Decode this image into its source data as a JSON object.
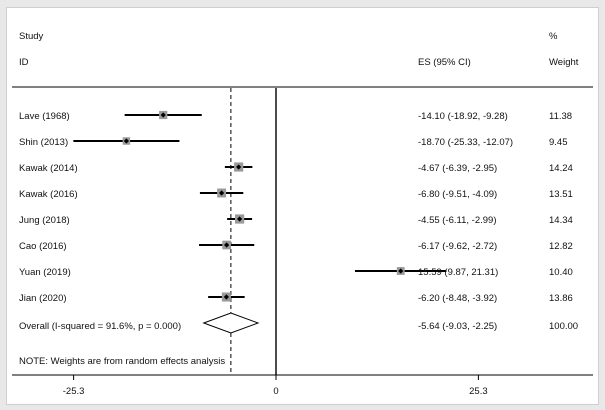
{
  "header": {
    "study_label": "Study",
    "id_label": "ID",
    "es_label": "ES (95% CI)",
    "pct_label": "%",
    "weight_label": "Weight"
  },
  "note": "NOTE: Weights are from random effects analysis",
  "chart_data": {
    "type": "forest",
    "title": "",
    "xlabel": "",
    "ylabel": "",
    "xlim": [
      -33,
      33
    ],
    "null_line": 0,
    "overall_line": -5.64,
    "ticks": [
      {
        "value": -25.3,
        "label": "-25.3"
      },
      {
        "value": 0,
        "label": "0"
      },
      {
        "value": 25.3,
        "label": "25.3"
      }
    ],
    "studies": [
      {
        "label": "Lave (1968)",
        "es": -14.1,
        "lo": -18.92,
        "hi": -9.28,
        "ci_text": "-14.10 (-18.92, -9.28)",
        "weight": 11.38,
        "weight_text": "11.38"
      },
      {
        "label": "Shin (2013)",
        "es": -18.7,
        "lo": -25.33,
        "hi": -12.07,
        "ci_text": "-18.70 (-25.33, -12.07)",
        "weight": 9.45,
        "weight_text": "9.45"
      },
      {
        "label": "Kawak (2014)",
        "es": -4.67,
        "lo": -6.39,
        "hi": -2.95,
        "ci_text": "-4.67 (-6.39, -2.95)",
        "weight": 14.24,
        "weight_text": "14.24"
      },
      {
        "label": "Kawak (2016)",
        "es": -6.8,
        "lo": -9.51,
        "hi": -4.09,
        "ci_text": "-6.80 (-9.51, -4.09)",
        "weight": 13.51,
        "weight_text": "13.51"
      },
      {
        "label": "Jung (2018)",
        "es": -4.55,
        "lo": -6.11,
        "hi": -2.99,
        "ci_text": "-4.55 (-6.11, -2.99)",
        "weight": 14.34,
        "weight_text": "14.34"
      },
      {
        "label": "Cao (2016)",
        "es": -6.17,
        "lo": -9.62,
        "hi": -2.72,
        "ci_text": "-6.17 (-9.62, -2.72)",
        "weight": 12.82,
        "weight_text": "12.82"
      },
      {
        "label": "Yuan (2019)",
        "es": 15.59,
        "lo": 9.87,
        "hi": 21.31,
        "ci_text": "15.59 (9.87, 21.31)",
        "weight": 10.4,
        "weight_text": "10.40"
      },
      {
        "label": "Jian (2020)",
        "es": -6.2,
        "lo": -8.48,
        "hi": -3.92,
        "ci_text": "-6.20 (-8.48, -3.92)",
        "weight": 13.86,
        "weight_text": "13.86"
      }
    ],
    "overall": {
      "label": "Overall  (I-squared = 91.6%, p = 0.000)",
      "es": -5.64,
      "lo": -9.03,
      "hi": -2.25,
      "ci_text": "-5.64 (-9.03, -2.25)",
      "weight_text": "100.00"
    }
  }
}
